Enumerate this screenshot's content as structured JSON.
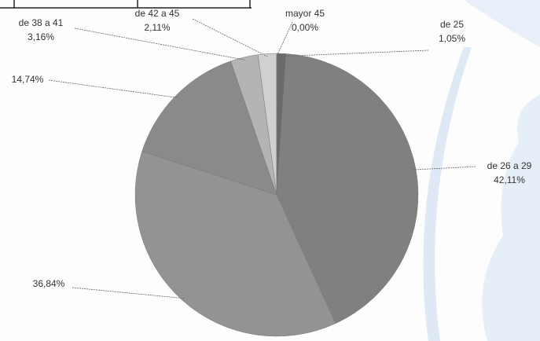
{
  "chart_data": {
    "type": "pie",
    "categories": [
      "de 25",
      "de 26 a 29",
      null,
      null,
      "de 38 a 41",
      "de 42 a 45",
      "mayor 45"
    ],
    "values": [
      1.05,
      42.11,
      36.84,
      14.74,
      3.16,
      2.11,
      0.0
    ],
    "value_labels": [
      "1,05%",
      "42,11%",
      "36,84%",
      "14,74%",
      "3,16%",
      "2,11%",
      "0,00%"
    ],
    "colors": [
      "#6a6a6a",
      "#808080",
      "#939393",
      "#8a8a8a",
      "#b4b4b4",
      "#d0d0d0",
      "#e2e2e2"
    ]
  }
}
